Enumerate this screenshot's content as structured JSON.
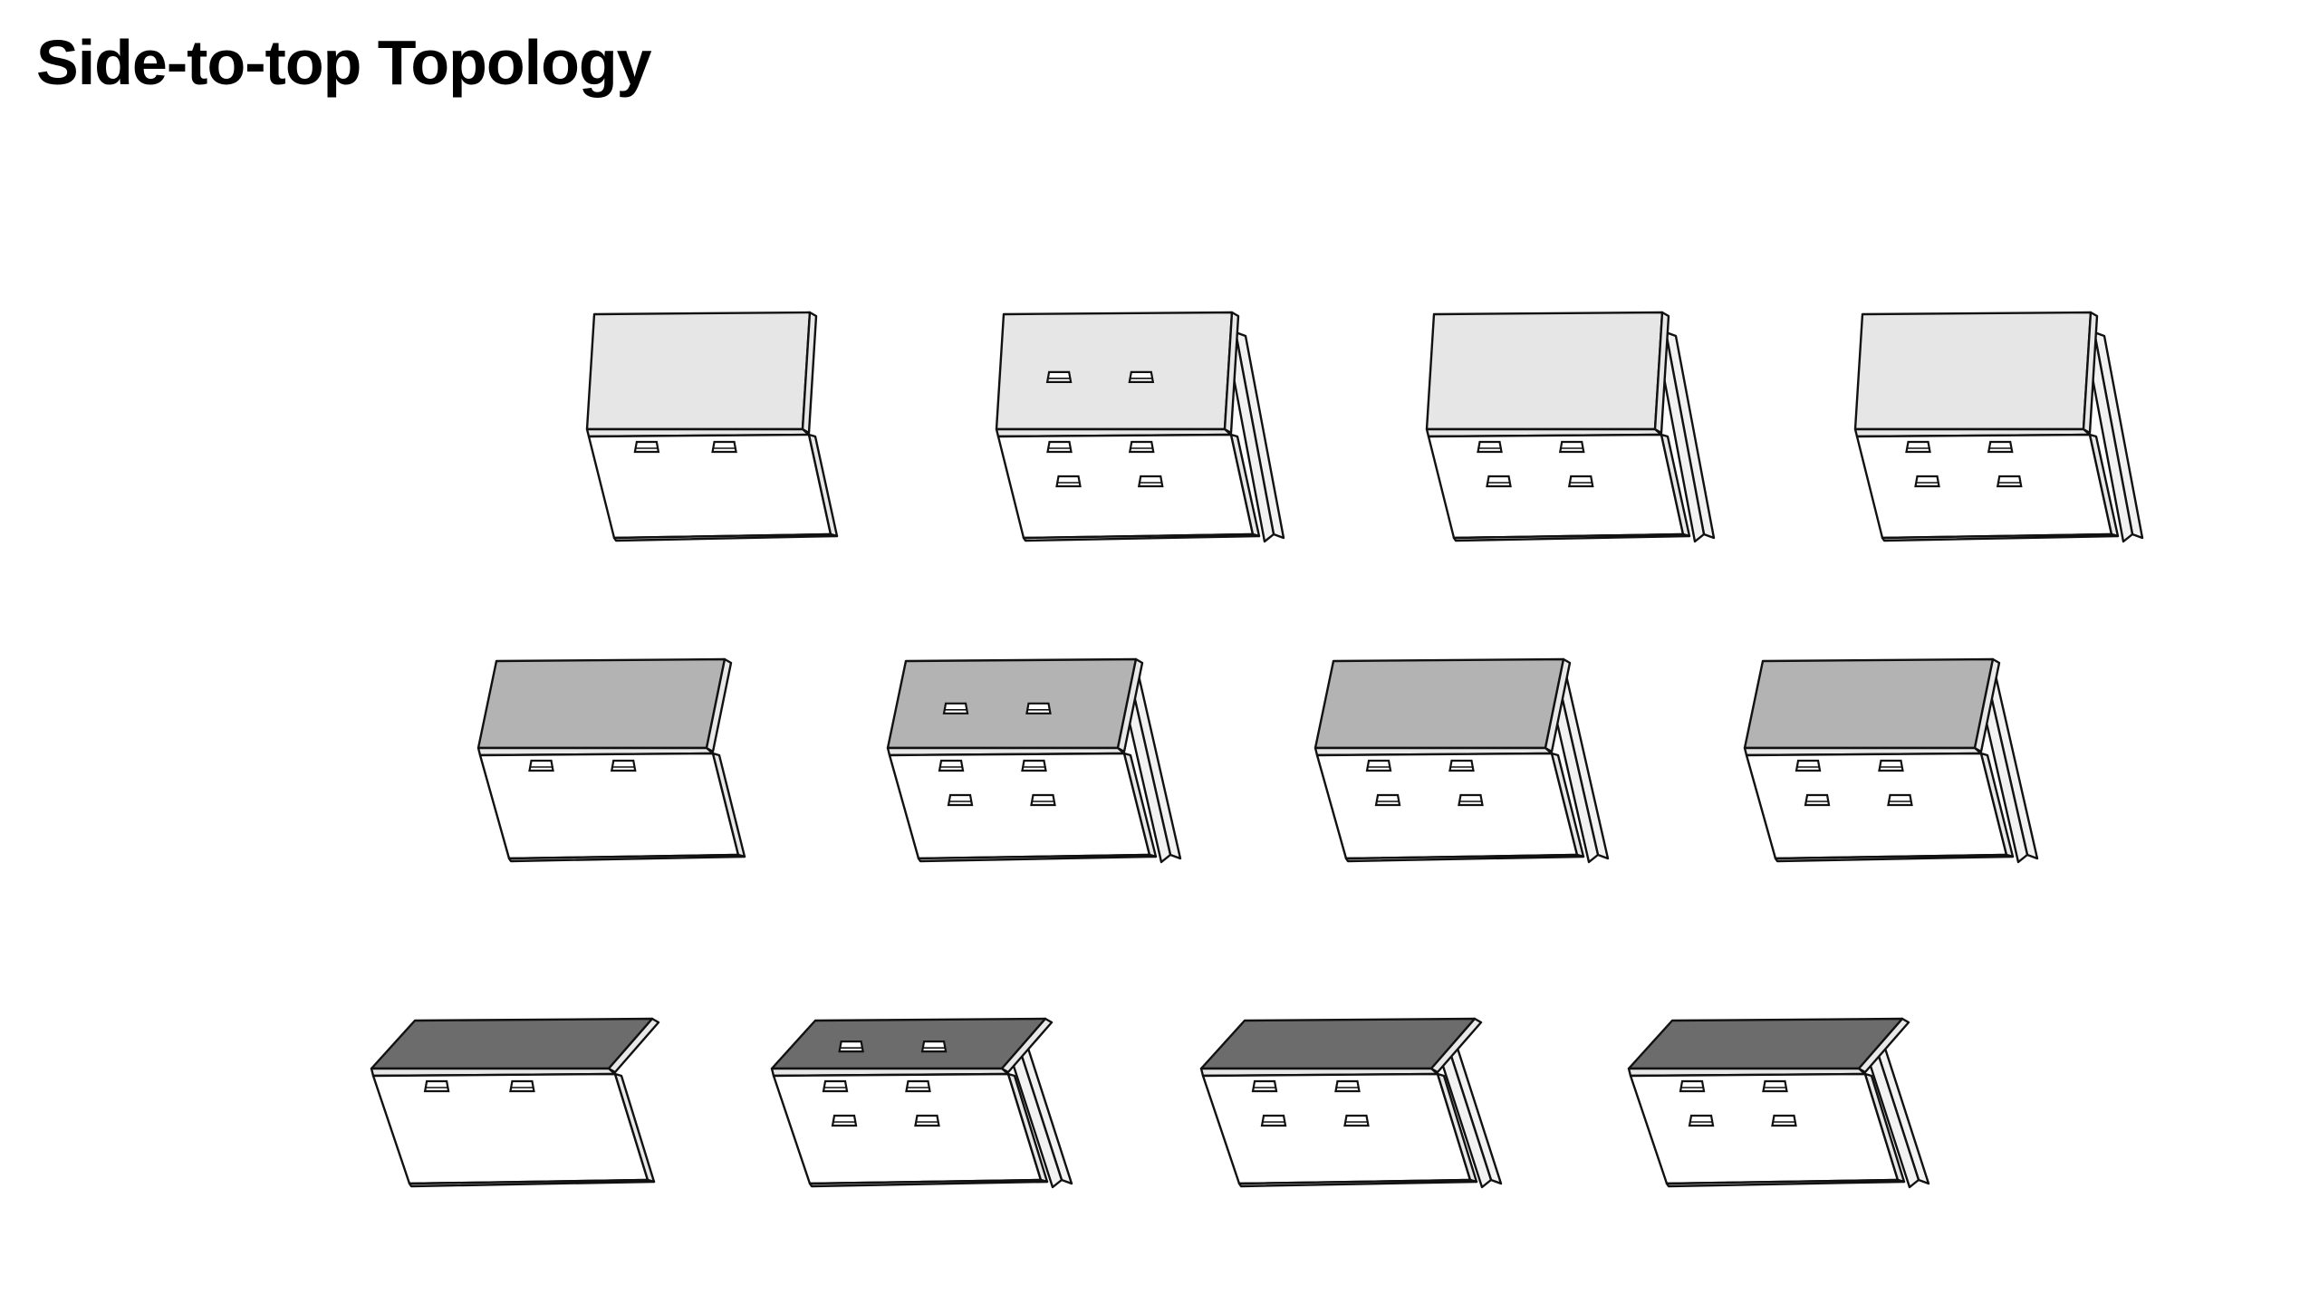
{
  "title": "Side-to-top Topology",
  "colors": {
    "background": "#ffffff",
    "stroke": "#111111",
    "front_face": "#ffffff",
    "edge_face": "#e8e8e8",
    "flange_face": "#f2f2f2",
    "row_tops": [
      "#e6e6e6",
      "#b3b3b3",
      "#6c6c6c"
    ]
  },
  "rows": [
    {
      "top_shade": "light",
      "items": [
        {
          "variant": "single-wall",
          "top_tabs": 0,
          "bottom_tab_rows": 1
        },
        {
          "variant": "wall-with-side-flange",
          "top_tabs": 2,
          "bottom_tab_rows": 2
        },
        {
          "variant": "wall-with-side-flange",
          "top_tabs": 0,
          "bottom_tab_rows": 2
        },
        {
          "variant": "wall-with-side-flange",
          "top_tabs": 0,
          "bottom_tab_rows": 2
        }
      ]
    },
    {
      "top_shade": "medium",
      "items": [
        {
          "variant": "single-wall",
          "top_tabs": 0,
          "bottom_tab_rows": 1
        },
        {
          "variant": "wall-with-side-flange",
          "top_tabs": 2,
          "bottom_tab_rows": 2
        },
        {
          "variant": "wall-with-side-flange",
          "top_tabs": 0,
          "bottom_tab_rows": 2
        },
        {
          "variant": "wall-with-side-flange",
          "top_tabs": 0,
          "bottom_tab_rows": 2
        }
      ]
    },
    {
      "top_shade": "dark",
      "items": [
        {
          "variant": "single-wall",
          "top_tabs": 0,
          "bottom_tab_rows": 1
        },
        {
          "variant": "wall-with-side-flange",
          "top_tabs": 2,
          "bottom_tab_rows": 2
        },
        {
          "variant": "wall-with-side-flange",
          "top_tabs": 0,
          "bottom_tab_rows": 2
        },
        {
          "variant": "wall-with-side-flange",
          "top_tabs": 0,
          "bottom_tab_rows": 2
        }
      ]
    }
  ]
}
